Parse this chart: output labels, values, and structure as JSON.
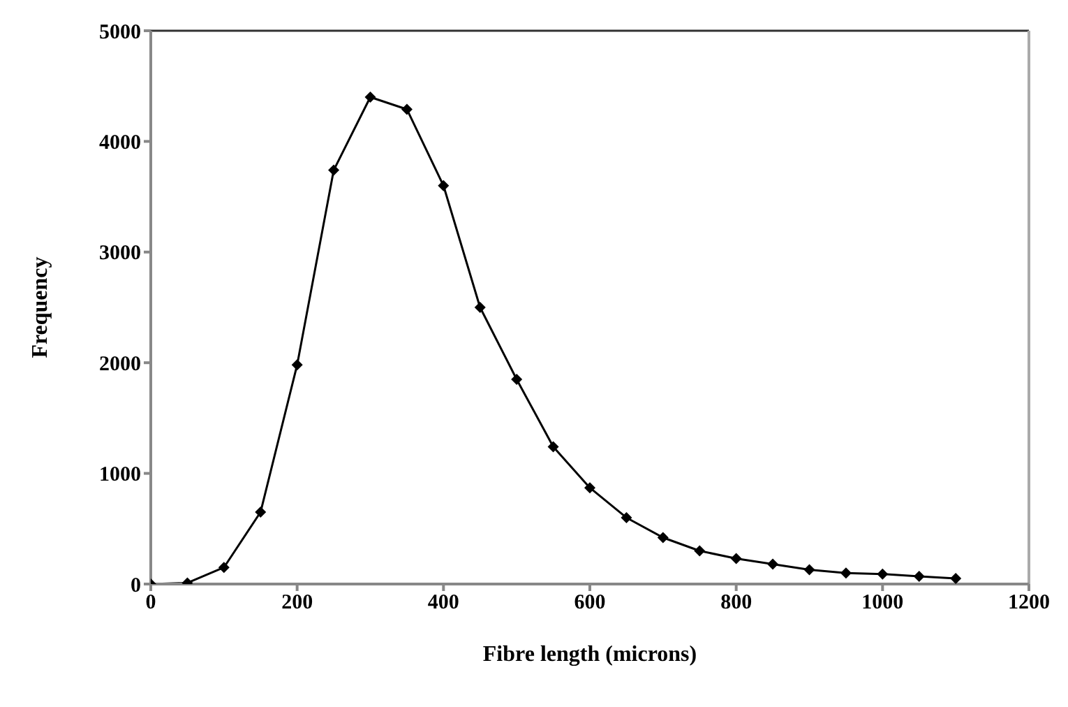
{
  "chart_data": {
    "type": "line",
    "xlabel": "Fibre length (microns)",
    "ylabel": "Frequency",
    "x": [
      0,
      50,
      100,
      150,
      200,
      250,
      300,
      350,
      400,
      450,
      500,
      550,
      600,
      650,
      700,
      750,
      800,
      850,
      900,
      950,
      1000,
      1050,
      1100
    ],
    "series": [
      {
        "color": "#000000",
        "values": [
          0,
          10,
          150,
          650,
          1980,
          3740,
          4400,
          4290,
          3600,
          2500,
          1850,
          1240,
          870,
          600,
          420,
          300,
          230,
          180,
          130,
          100,
          90,
          70,
          50
        ]
      }
    ],
    "xlim": [
      0,
      1200
    ],
    "xticks": [
      0,
      200,
      400,
      600,
      800,
      1000,
      1200
    ],
    "ylim": [
      0,
      5000
    ],
    "yticks": [
      0,
      1000,
      2000,
      3000,
      4000,
      5000
    ],
    "grid": false,
    "legend": false,
    "marker": "diamond",
    "line_style": "solid"
  }
}
